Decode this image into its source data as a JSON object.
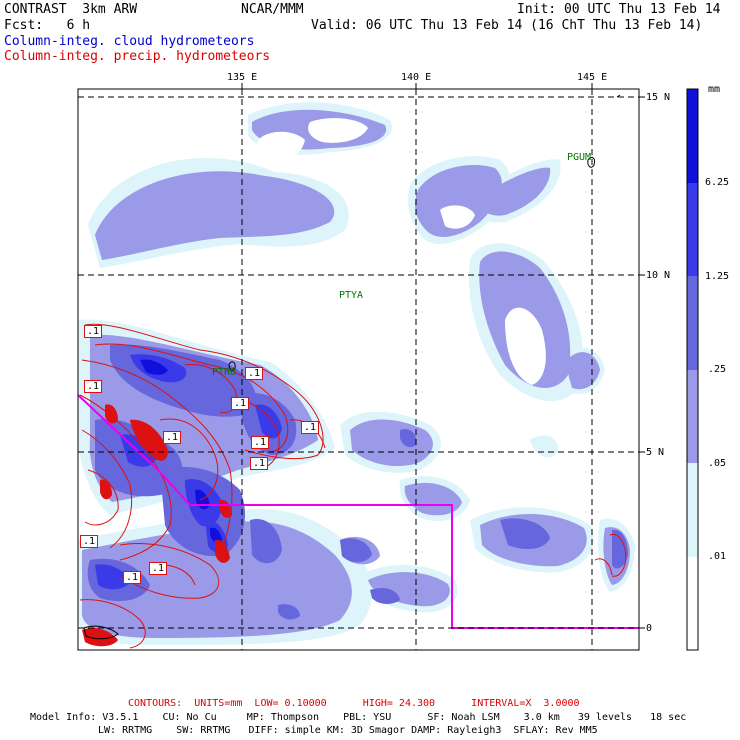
{
  "header": {
    "model_title": "CONTRAST  3km ARW",
    "org": "NCAR/MMM",
    "init": "Init: 00 UTC Thu 13 Feb 14",
    "fcst": "Fcst:   6 h",
    "valid": "Valid: 06 UTC Thu 13 Feb 14 (16 ChT Thu 13 Feb 14)",
    "field1": "Column-integ. cloud hydrometeors",
    "field2": "Column-integ. precip. hydrometeors"
  },
  "colors": {
    "field1": "#0000cc",
    "field2": "#dd0000",
    "contour": "#dd1111",
    "boundary": "#ee00ee",
    "station": "#007700"
  },
  "map": {
    "lon_labels": [
      "135 E",
      "140 E",
      "145 E"
    ],
    "lat_labels": [
      "15 N",
      "10 N",
      "5 N",
      "0"
    ],
    "stations": [
      "PGUM",
      "PTYA",
      "PTRO"
    ],
    "contour_labels": [
      ".1",
      ".1",
      ".1",
      ".1",
      ".1",
      ".1",
      ".1",
      ".1",
      ".1",
      ".1",
      ".1"
    ]
  },
  "colorbar": {
    "unit": "mm",
    "levels": [
      "6.25",
      "1.25",
      ".25",
      ".05",
      ".01"
    ],
    "fill_colors": [
      "#1010dd",
      "#3a3ae8",
      "#6666dd",
      "#9a9ae8",
      "#dcf4fa",
      "#ffffff"
    ]
  },
  "footer": {
    "contours": "CONTOURS:  UNITS=mm  LOW= 0.10000      HIGH= 24.300      INTERVAL=X  3.0000",
    "model_line1": "Model Info: V3.5.1    CU: No Cu     MP: Thompson    PBL: YSU      SF: Noah LSM    3.0 km   39 levels   18 sec",
    "model_line2": "LW: RRTMG    SW: RRTMG   DIFF: simple KM: 3D Smagor DAMP: Rayleigh3  SFLAY: Rev MM5"
  }
}
